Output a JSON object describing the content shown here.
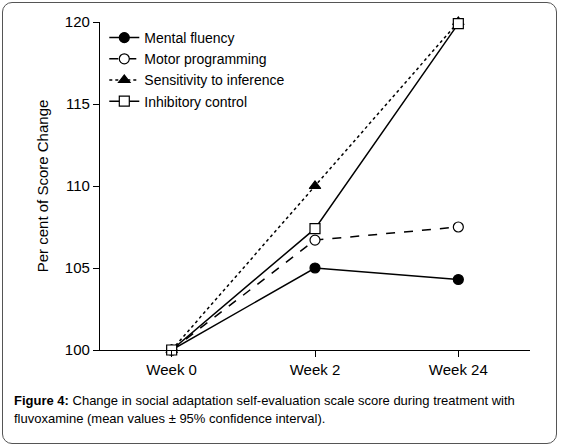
{
  "chart_data": {
    "type": "line",
    "y_label": "Per cent of Score Change",
    "categories": [
      "Week 0",
      "Week 2",
      "Week 24"
    ],
    "series": [
      {
        "name": "Mental fluency",
        "color": "#000000",
        "marker": "circle",
        "line_style": "solid",
        "values": [
          100,
          105,
          104.3
        ]
      },
      {
        "name": "Motor programming",
        "color": "#000000",
        "marker": "circle-open",
        "line_style": "dash",
        "values": [
          100,
          106.7,
          107.5
        ]
      },
      {
        "name": "Sensitivity to inference",
        "color": "#000000",
        "marker": "triangle-up",
        "line_style": "dot",
        "values": [
          100,
          110,
          120
        ]
      },
      {
        "name": "Inhibitory control",
        "color": "#000000",
        "marker": "square-open",
        "line_style": "solid",
        "values": [
          100,
          107.4,
          119.9
        ]
      }
    ],
    "ylim": [
      100,
      120
    ],
    "yticks": [
      100,
      105,
      110,
      115,
      120
    ],
    "grid": false,
    "legend": "top-left",
    "caption_label": "Figure 4:",
    "caption": "Change in social adaptation self-evaluation scale score during treatment with fluvoxamine (mean values ± 95% confidence interval)."
  }
}
